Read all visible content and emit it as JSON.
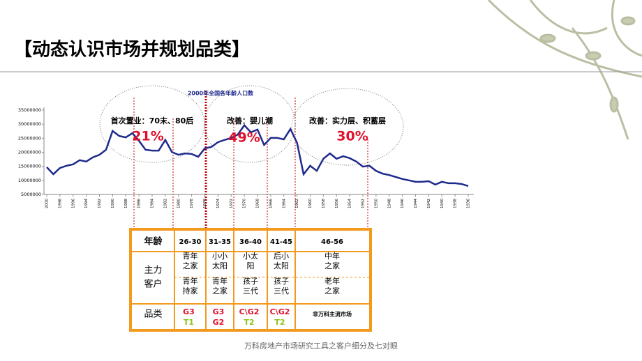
{
  "slide_title": "【动态认识市场并规划品类】",
  "footer": "万科房地产市场研究工具之客户细分及七对眼",
  "chart_data": {
    "type": "line",
    "title": "2000年全国各年龄人口数",
    "x": [
      2000,
      1999,
      1998,
      1997,
      1996,
      1995,
      1994,
      1993,
      1992,
      1991,
      1990,
      1989,
      1988,
      1987,
      1986,
      1985,
      1984,
      1983,
      1982,
      1981,
      1980,
      1979,
      1978,
      1977,
      1976,
      1975,
      1974,
      1973,
      1972,
      1971,
      1970,
      1969,
      1968,
      1967,
      1966,
      1965,
      1964,
      1963,
      1962,
      1961,
      1960,
      1959,
      1958,
      1957,
      1956,
      1955,
      1954,
      1953,
      1952,
      1951,
      1950,
      1949,
      1948,
      1947,
      1946,
      1945,
      1944,
      1943,
      1942,
      1941,
      1940,
      1939,
      1938,
      1937,
      1936
    ],
    "series": [
      {
        "color": "#1f2a8c",
        "values": [
          14700000,
          12200000,
          14400000,
          15200000,
          15700000,
          17200000,
          16700000,
          18200000,
          19100000,
          20900000,
          27600000,
          25800000,
          25300000,
          26800000,
          24100000,
          20900000,
          20600000,
          20600000,
          24400000,
          20100000,
          19100000,
          19600000,
          19400000,
          18400000,
          21400000,
          21900000,
          23600000,
          24400000,
          25100000,
          26300000,
          29600000,
          27100000,
          28100000,
          22600000,
          25100000,
          25100000,
          24600000,
          28300000,
          23400000,
          12200000,
          15200000,
          13400000,
          17700000,
          19600000,
          17700000,
          18600000,
          17900000,
          16700000,
          14900000,
          15200000,
          13400000,
          12400000,
          11900000,
          11200000,
          10500000,
          10000000,
          9500000,
          9500000,
          9700000,
          8500000,
          9500000,
          9000000,
          9000000,
          8700000,
          8000000
        ]
      }
    ],
    "xlim": [
      2000,
      1936
    ],
    "xticks": [
      2000,
      1998,
      1996,
      1994,
      1992,
      1990,
      1988,
      1986,
      1984,
      1982,
      1980,
      1978,
      1976,
      1974,
      1972,
      1970,
      1968,
      1966,
      1964,
      1962,
      1960,
      1958,
      1956,
      1954,
      1952,
      1950,
      1948,
      1946,
      1944,
      1942,
      1940,
      1938,
      1936
    ],
    "ylim": [
      5000000,
      35000000
    ],
    "yticks": [
      5000000,
      10000000,
      15000000,
      20000000,
      25000000,
      30000000,
      35000000
    ],
    "annotations": [
      {
        "text": "首次置业：70末、80后",
        "share": "21%"
      },
      {
        "text": "改善：婴儿潮",
        "share": "49%"
      },
      {
        "text": "改善：实力层、积蓄层",
        "share": "30%"
      }
    ]
  },
  "table": {
    "header": [
      "年龄",
      "26-30",
      "31-35",
      "36-40",
      "41-45",
      "46-56"
    ],
    "customer_label": [
      "主力",
      "客户"
    ],
    "customers": [
      {
        "top": [
          "青年",
          "之家"
        ],
        "bottom": [
          "青年",
          "持家"
        ]
      },
      {
        "top": [
          "小小",
          "太阳"
        ],
        "bottom": [
          "青年",
          "之家"
        ]
      },
      {
        "top": [
          "小太",
          "阳"
        ],
        "bottom": [
          "孩子",
          "三代"
        ]
      },
      {
        "top": [
          "后小",
          "太阳"
        ],
        "bottom": [
          "孩子",
          "三代"
        ]
      },
      {
        "top": [
          "中年",
          "之家"
        ],
        "bottom": [
          "老年",
          "之家"
        ]
      }
    ],
    "category_label": "品类",
    "categories": [
      [
        {
          "text": "G3",
          "color": "#e0102a"
        },
        {
          "text": "T1",
          "color": "#8fc31f"
        }
      ],
      [
        {
          "text": "G3",
          "color": "#e0102a"
        },
        {
          "text": "G2",
          "color": "#e0102a"
        }
      ],
      [
        {
          "text": "C\\G2",
          "color": "#e0102a"
        },
        {
          "text": "T2",
          "color": "#8fc31f"
        }
      ],
      [
        {
          "text": "C\\G2",
          "color": "#e0102a"
        },
        {
          "text": "T2",
          "color": "#8fc31f"
        }
      ],
      [
        {
          "text": "非万科主流市场",
          "color": "#000000"
        }
      ]
    ]
  }
}
